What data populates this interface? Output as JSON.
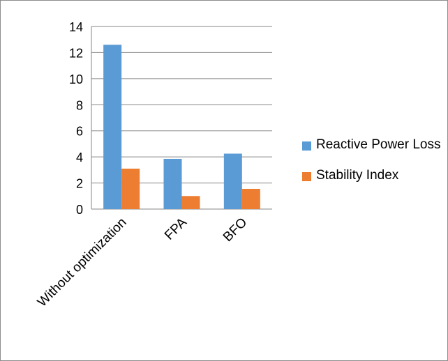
{
  "chart_data": {
    "type": "bar",
    "title": "",
    "xlabel": "",
    "ylabel": "",
    "categories": [
      "Without optimization",
      "FPA",
      "BFO"
    ],
    "series": [
      {
        "name": "Reactive Power Loss",
        "color": "#5B9BD5",
        "values": [
          12.6,
          3.85,
          4.25
        ]
      },
      {
        "name": "Stability Index",
        "color": "#ED7D31",
        "values": [
          3.1,
          1.0,
          1.55
        ]
      }
    ],
    "ylim": [
      0,
      14
    ],
    "yticks": [
      "0",
      "2",
      "4",
      "6",
      "8",
      "10",
      "12",
      "14"
    ],
    "grid": true,
    "legend_position": "right"
  }
}
